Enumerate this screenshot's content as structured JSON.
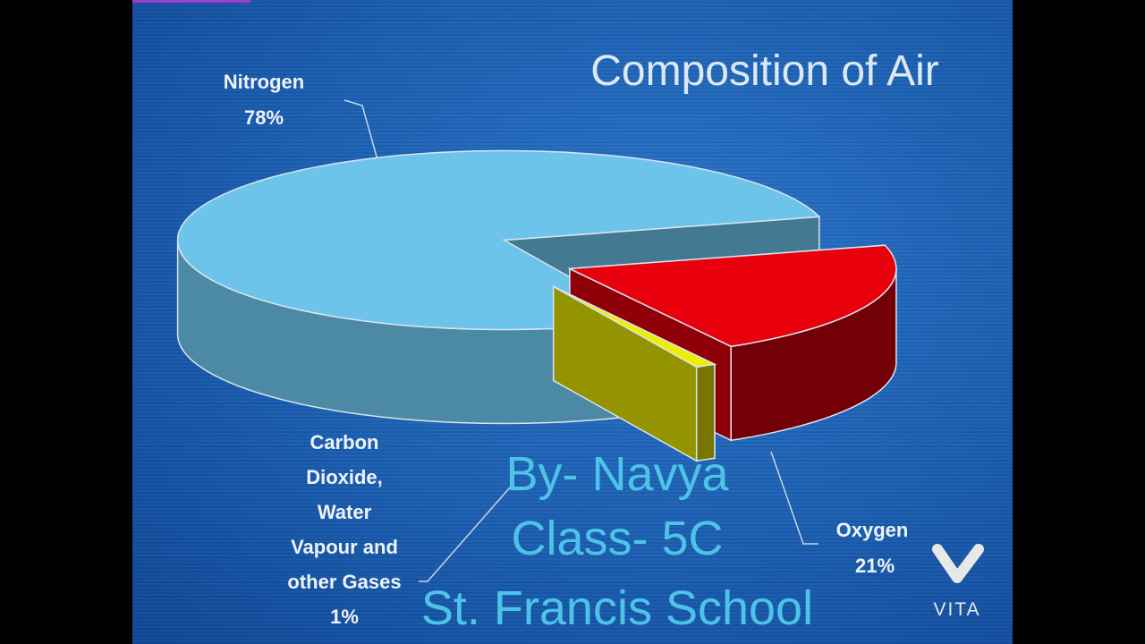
{
  "chart_data": {
    "type": "pie",
    "title": "Composition of Air",
    "categories": [
      "Nitrogen",
      "Oxygen",
      "Carbon Dioxide, Water Vapour and other Gases"
    ],
    "values": [
      78,
      21,
      1
    ],
    "value_labels": [
      "78%",
      "21%",
      "1%"
    ],
    "colors": [
      "#6cc4ea",
      "#e8000d",
      "#eeee00"
    ]
  },
  "overlay_text": [
    "By- Navya",
    "Class- 5C",
    "St. Francis School"
  ],
  "watermark": "VITA"
}
